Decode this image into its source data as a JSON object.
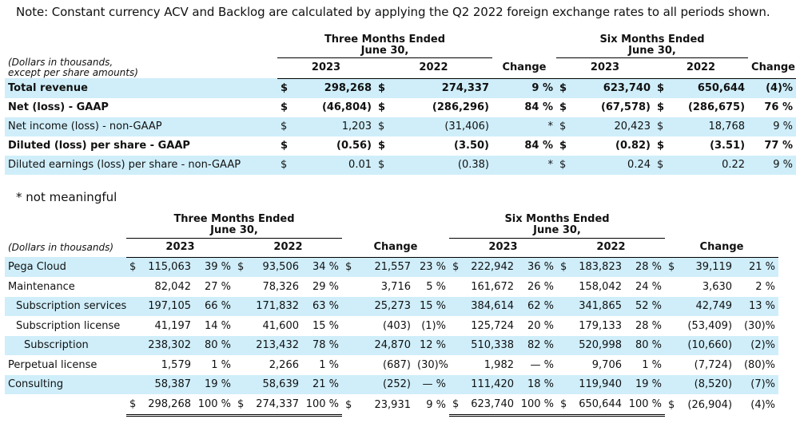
{
  "note": "Note: Constant currency ACV and Backlog are calculated by applying the Q2 2022 foreign exchange rates to all periods shown.",
  "footnote": "* not meaningful",
  "table1": {
    "caption": [
      "(Dollars in thousands,",
      "except per share amounts)"
    ],
    "group_three": [
      "Three Months Ended",
      "June 30,"
    ],
    "group_six": [
      "Six Months Ended",
      "June 30,"
    ],
    "col_2023": "2023",
    "col_2022": "2022",
    "col_change": "Change",
    "rows": [
      {
        "label": "Total revenue",
        "bold": true,
        "shade": true,
        "d1": "$",
        "v1": "298,268",
        "d2": "$",
        "v2": "274,337",
        "ch": "9 %",
        "d3": "$",
        "v3": "623,740",
        "d4": "$",
        "v4": "650,644",
        "ch2": "(4)%"
      },
      {
        "label": "Net (loss) - GAAP",
        "bold": true,
        "shade": false,
        "d1": "$",
        "v1": "(46,804)",
        "d2": "$",
        "v2": "(286,296)",
        "ch": "84 %",
        "d3": "$",
        "v3": "(67,578)",
        "d4": "$",
        "v4": "(286,675)",
        "ch2": "76 %"
      },
      {
        "label": "Net income (loss) - non-GAAP",
        "bold": false,
        "shade": true,
        "d1": "$",
        "v1": "1,203",
        "d2": "$",
        "v2": "(31,406)",
        "ch": "*",
        "d3": "$",
        "v3": "20,423",
        "d4": "$",
        "v4": "18,768",
        "ch2": "9 %"
      },
      {
        "label": "Diluted (loss) per share - GAAP",
        "bold": true,
        "shade": false,
        "d1": "$",
        "v1": "(0.56)",
        "d2": "$",
        "v2": "(3.50)",
        "ch": "84 %",
        "d3": "$",
        "v3": "(0.82)",
        "d4": "$",
        "v4": "(3.51)",
        "ch2": "77 %"
      },
      {
        "label": "Diluted earnings (loss) per share - non-GAAP",
        "bold": false,
        "shade": true,
        "d1": "$",
        "v1": "0.01",
        "d2": "$",
        "v2": "(0.38)",
        "ch": "*",
        "d3": "$",
        "v3": "0.24",
        "d4": "$",
        "v4": "0.22",
        "ch2": "9 %"
      }
    ]
  },
  "table2": {
    "caption": "(Dollars in thousands)",
    "group_three": [
      "Three Months Ended",
      "June 30,"
    ],
    "group_six": [
      "Six Months Ended",
      "June 30,"
    ],
    "col_2023": "2023",
    "col_2022": "2022",
    "col_change": "Change",
    "rows": [
      {
        "label": "Pega Cloud",
        "indent": 0,
        "shade": true,
        "a": "$ 115,063",
        "ap": "39 %",
        "b": "$  93,506",
        "bp": "34 %",
        "c": "$  21,557",
        "cp": "23 %",
        "d": "$ 222,942",
        "dp": "36 %",
        "e": "$ 183,823",
        "ep": "28 %",
        "f": "$  39,119",
        "fp": "21 %"
      },
      {
        "label": "Maintenance",
        "indent": 0,
        "shade": false,
        "a": "82,042",
        "ap": "27 %",
        "b": "78,326",
        "bp": "29 %",
        "c": "3,716",
        "cp": "5 %",
        "d": "161,672",
        "dp": "26 %",
        "e": "158,042",
        "ep": "24 %",
        "f": "3,630",
        "fp": "2 %"
      },
      {
        "label": "Subscription services",
        "indent": 1,
        "shade": true,
        "a": "197,105",
        "ap": "66 %",
        "b": "171,832",
        "bp": "63 %",
        "c": "25,273",
        "cp": "15 %",
        "d": "384,614",
        "dp": "62 %",
        "e": "341,865",
        "ep": "52 %",
        "f": "42,749",
        "fp": "13 %"
      },
      {
        "label": "Subscription license",
        "indent": 1,
        "shade": false,
        "a": "41,197",
        "ap": "14 %",
        "b": "41,600",
        "bp": "15 %",
        "c": "(403)",
        "cp": "(1)%",
        "d": "125,724",
        "dp": "20 %",
        "e": "179,133",
        "ep": "28 %",
        "f": "(53,409)",
        "fp": "(30)%"
      },
      {
        "label": "Subscription",
        "indent": 2,
        "shade": true,
        "a": "238,302",
        "ap": "80 %",
        "b": "213,432",
        "bp": "78 %",
        "c": "24,870",
        "cp": "12 %",
        "d": "510,338",
        "dp": "82 %",
        "e": "520,998",
        "ep": "80 %",
        "f": "(10,660)",
        "fp": "(2)%"
      },
      {
        "label": "Perpetual license",
        "indent": 0,
        "shade": false,
        "a": "1,579",
        "ap": "1 %",
        "b": "2,266",
        "bp": "1 %",
        "c": "(687)",
        "cp": "(30)%",
        "d": "1,982",
        "dp": "— %",
        "e": "9,706",
        "ep": "1 %",
        "f": "(7,724)",
        "fp": "(80)%"
      },
      {
        "label": "Consulting",
        "indent": 0,
        "shade": true,
        "a": "58,387",
        "ap": "19 %",
        "b": "58,639",
        "bp": "21 %",
        "c": "(252)",
        "cp": "— %",
        "d": "111,420",
        "dp": "18 %",
        "e": "119,940",
        "ep": "19 %",
        "f": "(8,520)",
        "fp": "(7)%"
      },
      {
        "label": "",
        "indent": 0,
        "shade": false,
        "total": true,
        "a": "$ 298,268",
        "ap": "100 %",
        "b": "$ 274,337",
        "bp": "100 %",
        "c": "$  23,931",
        "cp": "9 %",
        "d": "$ 623,740",
        "dp": "100 %",
        "e": "$ 650,644",
        "ep": "100 %",
        "f": "$ (26,904)",
        "fp": "(4)%"
      }
    ]
  }
}
